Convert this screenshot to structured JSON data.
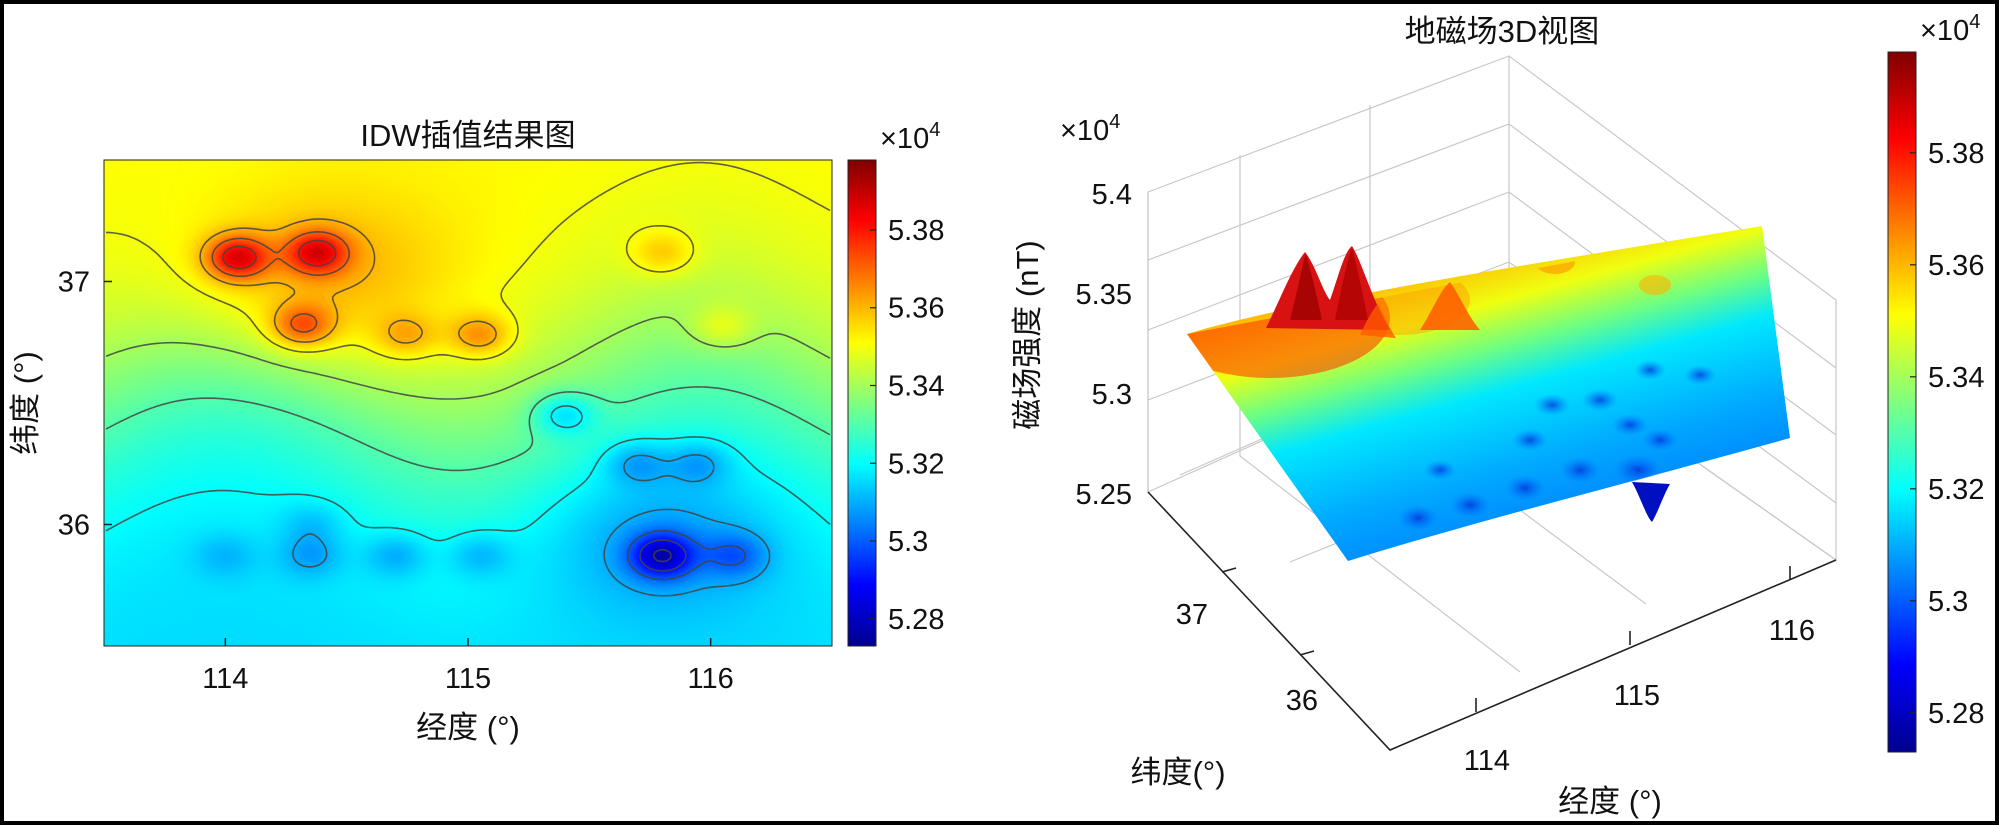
{
  "chart_data": [
    {
      "type": "heatmap",
      "title": "IDW插值结果图",
      "xlabel": "经度 (°)",
      "ylabel": "纬度 (°)",
      "xlim": [
        113.5,
        116.5
      ],
      "ylim": [
        35.5,
        37.5
      ],
      "xticks": [
        "114",
        "115",
        "116"
      ],
      "yticks": [
        "36",
        "37"
      ],
      "contour_lines": true,
      "colorbar": {
        "multiplier": "×10",
        "exponent": "4",
        "range": [
          5.273,
          5.398
        ],
        "ticks": [
          "5.28",
          "5.3",
          "5.32",
          "5.34",
          "5.36",
          "5.38"
        ]
      },
      "field": {
        "base": {
          "north": 5.352,
          "south": 5.315
        },
        "anomalies": [
          {
            "x": 114.05,
            "y": 37.1,
            "value": 5.392
          },
          {
            "x": 114.38,
            "y": 37.12,
            "value": 5.388
          },
          {
            "x": 114.32,
            "y": 36.82,
            "value": 5.372
          },
          {
            "x": 114.75,
            "y": 36.78,
            "value": 5.362
          },
          {
            "x": 115.05,
            "y": 36.78,
            "value": 5.37
          },
          {
            "x": 115.8,
            "y": 37.12,
            "value": 5.362
          },
          {
            "x": 116.05,
            "y": 36.82,
            "value": 5.352
          },
          {
            "x": 115.7,
            "y": 36.25,
            "value": 5.306
          },
          {
            "x": 115.95,
            "y": 36.25,
            "value": 5.306
          },
          {
            "x": 114.35,
            "y": 36.0,
            "value": 5.31
          },
          {
            "x": 114.0,
            "y": 35.87,
            "value": 5.308
          },
          {
            "x": 114.35,
            "y": 35.87,
            "value": 5.304
          },
          {
            "x": 114.7,
            "y": 35.87,
            "value": 5.306
          },
          {
            "x": 115.05,
            "y": 35.87,
            "value": 5.308
          },
          {
            "x": 115.8,
            "y": 35.87,
            "value": 5.274
          },
          {
            "x": 116.1,
            "y": 35.87,
            "value": 5.298
          },
          {
            "x": 115.4,
            "y": 36.45,
            "value": 5.31
          }
        ]
      }
    },
    {
      "type": "surface",
      "title": "地磁场3D视图",
      "xlabel": "经度 (°)",
      "ylabel": "纬度(°)",
      "zlabel": "磁场强度 (nT)",
      "z_multiplier": "×10",
      "z_exponent": "4",
      "xticks": [
        "114",
        "115",
        "116"
      ],
      "yticks": [
        "36",
        "37"
      ],
      "zticks": [
        "5.25",
        "5.3",
        "5.35",
        "5.4"
      ],
      "zlim": [
        5.25,
        5.4
      ],
      "colorbar": {
        "multiplier": "×10",
        "exponent": "4",
        "range": [
          5.273,
          5.398
        ],
        "ticks": [
          "5.28",
          "5.3",
          "5.32",
          "5.34",
          "5.36",
          "5.38"
        ]
      }
    }
  ]
}
